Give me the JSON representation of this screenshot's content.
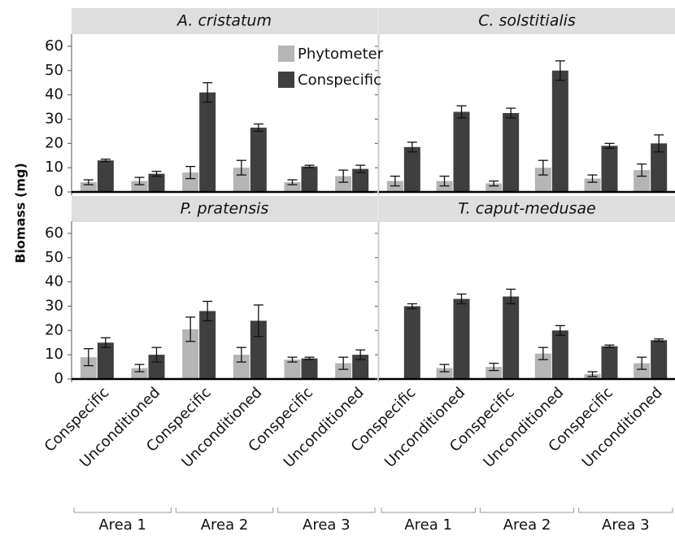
{
  "chart_data": {
    "type": "bar",
    "y_label": "Biomass (mg)",
    "categories": [
      "Conspecific",
      "Unconditioned",
      "Conspecific",
      "Unconditioned",
      "Conspecific",
      "Unconditioned"
    ],
    "groups": [
      "Area 1",
      "Area 2",
      "Area 3"
    ],
    "ylim": [
      0,
      65
    ],
    "yticks": [
      0,
      10,
      20,
      30,
      40,
      50,
      60
    ],
    "series": [
      {
        "name": "Phytometer",
        "color": "#b5b5b5"
      },
      {
        "name": "Conspecific",
        "color": "#3f3f3f"
      }
    ],
    "panels": [
      {
        "title": "A. cristatum",
        "series": [
          {
            "values": [
              4,
              4.5,
              8,
              10,
              4,
              6.5
            ],
            "errors": [
              1,
              1.5,
              2.5,
              3,
              1,
              2.5
            ]
          },
          {
            "values": [
              13,
              7.5,
              41,
              26.5,
              10.5,
              9.5
            ],
            "errors": [
              0.5,
              1,
              4,
              1.5,
              0.5,
              1.5
            ]
          }
        ]
      },
      {
        "title": "C. solstitialis",
        "series": [
          {
            "values": [
              4.5,
              4.5,
              3.5,
              10,
              5.5,
              9
            ],
            "errors": [
              2,
              2,
              1,
              3,
              1.5,
              2.5
            ]
          },
          {
            "values": [
              18.5,
              33,
              32.5,
              50,
              19,
              20
            ],
            "errors": [
              2,
              2.5,
              2,
              4,
              1,
              3.5
            ]
          }
        ]
      },
      {
        "title": "P. pratensis",
        "series": [
          {
            "values": [
              9,
              4.5,
              20.5,
              10,
              8,
              6.5
            ],
            "errors": [
              3.5,
              1.5,
              5,
              3,
              1,
              2.5
            ]
          },
          {
            "values": [
              15,
              10,
              28,
              24,
              8.5,
              10
            ],
            "errors": [
              2,
              3,
              4,
              6.5,
              0.5,
              2
            ]
          }
        ]
      },
      {
        "title": "T. caput-medusae",
        "series": [
          {
            "values": [
              0,
              4.5,
              5,
              10.5,
              2,
              6.5
            ],
            "errors": [
              0,
              1.5,
              1.5,
              2.5,
              1,
              2.5
            ]
          },
          {
            "values": [
              30,
              33,
              34,
              20,
              13.5,
              16
            ],
            "errors": [
              1,
              2,
              3,
              2,
              0.5,
              0.5
            ]
          }
        ]
      }
    ]
  }
}
